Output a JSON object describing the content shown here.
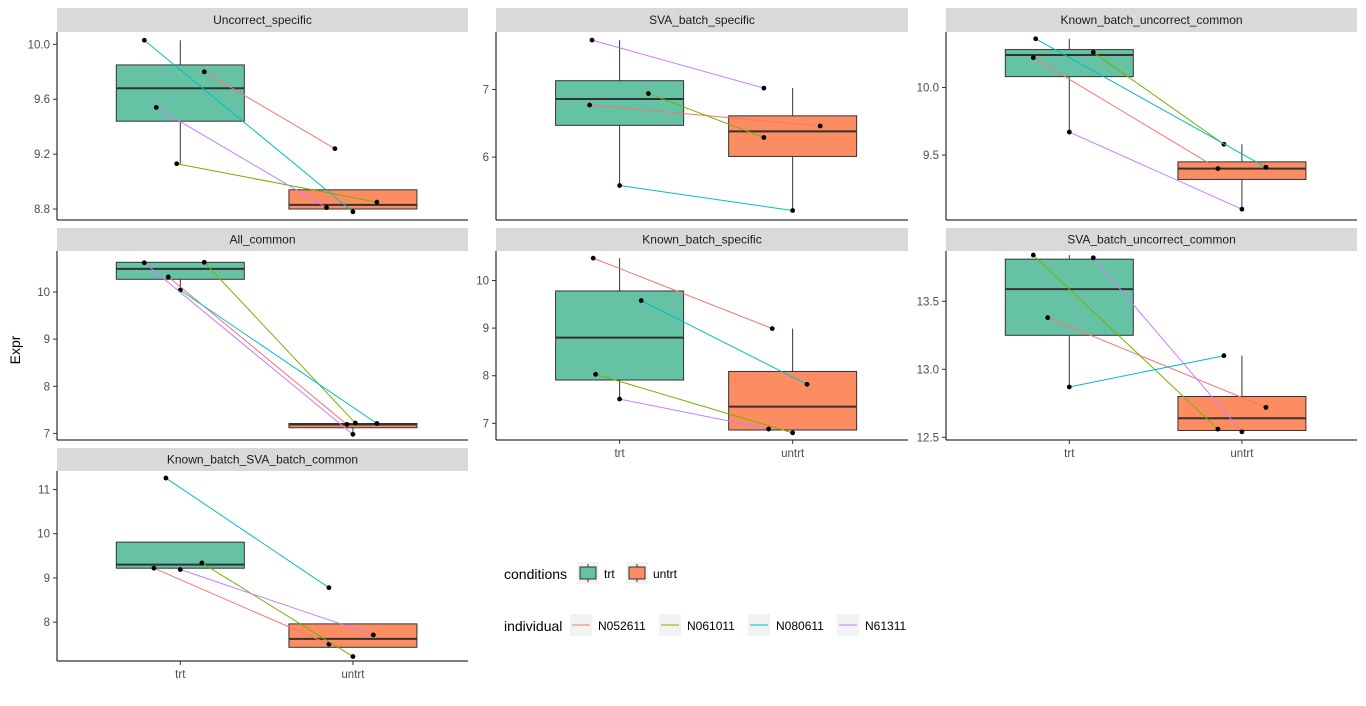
{
  "y_axis_label": "Expr",
  "fill_colors": {
    "trt": "#66c2a5",
    "untrt": "#fc8d62"
  },
  "line_colors": {
    "N052611": "#f8766d",
    "N061011": "#7cae00",
    "N080611": "#00bfc4",
    "N61311": "#c77cff"
  },
  "legend": {
    "conditions": {
      "title": "conditions",
      "items": [
        "trt",
        "untrt"
      ]
    },
    "individual": {
      "title": "individual",
      "items": [
        "N052611",
        "N061011",
        "N080611",
        "N61311"
      ]
    }
  },
  "chart_data": [
    {
      "type": "box+line",
      "title": "Uncorrect_specific",
      "categories": [
        "trt",
        "untrt"
      ],
      "ylim": [
        8.72,
        10.09
      ],
      "yticks": [
        8.8,
        9.2,
        9.6,
        10.0
      ],
      "ytick_labels": [
        "8.8",
        "9.2",
        "9.6",
        "10.0"
      ],
      "show_xaxis": false,
      "boxes": [
        {
          "group": "trt",
          "q1": 9.44,
          "median": 9.68,
          "q3": 9.85,
          "whisker_low": 9.13,
          "whisker_high": 10.03
        },
        {
          "group": "untrt",
          "q1": 8.8,
          "median": 8.83,
          "q3": 8.94,
          "whisker_low": 8.78,
          "whisker_high": 8.94
        }
      ],
      "series": [
        {
          "name": "N052611",
          "trt": 9.8,
          "untrt": 9.24,
          "trt_jitter": 0.2,
          "untrt_jitter": -0.15
        },
        {
          "name": "N061011",
          "trt": 9.13,
          "untrt": 8.85,
          "trt_jitter": -0.03,
          "untrt_jitter": 0.2
        },
        {
          "name": "N080611",
          "trt": 10.03,
          "untrt": 8.78,
          "trt_jitter": -0.3,
          "untrt_jitter": 0
        },
        {
          "name": "N61311",
          "trt": 9.54,
          "untrt": 8.81,
          "trt_jitter": -0.2,
          "untrt_jitter": -0.22
        }
      ]
    },
    {
      "type": "box+line",
      "title": "SVA_batch_specific",
      "categories": [
        "trt",
        "untrt"
      ],
      "ylim": [
        5.07,
        7.85
      ],
      "yticks": [
        6,
        7
      ],
      "ytick_labels": [
        "6",
        "7"
      ],
      "show_xaxis": false,
      "boxes": [
        {
          "group": "trt",
          "q1": 6.47,
          "median": 6.86,
          "q3": 7.13,
          "whisker_low": 5.58,
          "whisker_high": 7.73
        },
        {
          "group": "untrt",
          "q1": 6.01,
          "median": 6.38,
          "q3": 6.61,
          "whisker_low": 5.21,
          "whisker_high": 7.02
        }
      ],
      "series": [
        {
          "name": "N052611",
          "trt": 6.77,
          "untrt": 6.46,
          "trt_jitter": -0.25,
          "untrt_jitter": 0.23
        },
        {
          "name": "N061011",
          "trt": 6.94,
          "untrt": 6.29,
          "trt_jitter": 0.24,
          "untrt_jitter": -0.24
        },
        {
          "name": "N080611",
          "trt": 5.58,
          "untrt": 5.21,
          "trt_jitter": 0,
          "untrt_jitter": 0
        },
        {
          "name": "N61311",
          "trt": 7.73,
          "untrt": 7.02,
          "trt_jitter": -0.23,
          "untrt_jitter": -0.24
        }
      ]
    },
    {
      "type": "box+line",
      "title": "Known_batch_uncorrect_common",
      "categories": [
        "trt",
        "untrt"
      ],
      "ylim": [
        9.02,
        10.41
      ],
      "yticks": [
        9.5,
        10.0
      ],
      "ytick_labels": [
        "9.5",
        "10.0"
      ],
      "show_xaxis": false,
      "boxes": [
        {
          "group": "trt",
          "q1": 10.08,
          "median": 10.24,
          "q3": 10.28,
          "whisker_low": 9.67,
          "whisker_high": 10.36
        },
        {
          "group": "untrt",
          "q1": 9.32,
          "median": 9.4,
          "q3": 9.45,
          "whisker_low": 9.1,
          "whisker_high": 9.58
        }
      ],
      "series": [
        {
          "name": "N052611",
          "trt": 10.22,
          "untrt": 9.4,
          "trt_jitter": -0.3,
          "untrt_jitter": -0.2
        },
        {
          "name": "N061011",
          "trt": 10.26,
          "untrt": 9.58,
          "trt_jitter": 0.2,
          "untrt_jitter": -0.15
        },
        {
          "name": "N080611",
          "trt": 10.36,
          "untrt": 9.41,
          "trt_jitter": -0.28,
          "untrt_jitter": 0.2
        },
        {
          "name": "N61311",
          "trt": 9.67,
          "untrt": 9.1,
          "trt_jitter": 0,
          "untrt_jitter": 0
        }
      ]
    },
    {
      "type": "box+line",
      "title": "All_common",
      "categories": [
        "trt",
        "untrt"
      ],
      "ylim": [
        6.86,
        10.87
      ],
      "yticks": [
        7,
        8,
        9,
        10
      ],
      "ytick_labels": [
        "7",
        "8",
        "9",
        "10"
      ],
      "show_xaxis": false,
      "boxes": [
        {
          "group": "trt",
          "q1": 10.27,
          "median": 10.49,
          "q3": 10.63,
          "whisker_low": 10.04,
          "whisker_high": 10.63
        },
        {
          "group": "untrt",
          "q1": 7.12,
          "median": 7.19,
          "q3": 7.21,
          "whisker_low": 6.98,
          "whisker_high": 7.21
        }
      ],
      "series": [
        {
          "name": "N052611",
          "trt": 10.32,
          "untrt": 7.19,
          "trt_jitter": -0.1,
          "untrt_jitter": -0.05
        },
        {
          "name": "N061011",
          "trt": 10.63,
          "untrt": 7.22,
          "trt_jitter": 0.2,
          "untrt_jitter": 0.02
        },
        {
          "name": "N080611",
          "trt": 10.04,
          "untrt": 7.21,
          "trt_jitter": 0,
          "untrt_jitter": 0.2
        },
        {
          "name": "N61311",
          "trt": 10.62,
          "untrt": 6.98,
          "trt_jitter": -0.3,
          "untrt_jitter": 0
        }
      ]
    },
    {
      "type": "box+line",
      "title": "Known_batch_specific",
      "categories": [
        "trt",
        "untrt"
      ],
      "ylim": [
        6.65,
        10.62
      ],
      "yticks": [
        7,
        8,
        9,
        10
      ],
      "ytick_labels": [
        "7",
        "8",
        "9",
        "10"
      ],
      "show_xaxis": true,
      "boxes": [
        {
          "group": "trt",
          "q1": 7.91,
          "median": 8.8,
          "q3": 9.78,
          "whisker_low": 7.51,
          "whisker_high": 10.47
        },
        {
          "group": "untrt",
          "q1": 6.86,
          "median": 7.35,
          "q3": 8.09,
          "whisker_low": 6.8,
          "whisker_high": 8.99
        }
      ],
      "series": [
        {
          "name": "N052611",
          "trt": 10.47,
          "untrt": 8.99,
          "trt_jitter": -0.22,
          "untrt_jitter": -0.17
        },
        {
          "name": "N061011",
          "trt": 8.03,
          "untrt": 6.8,
          "trt_jitter": -0.2,
          "untrt_jitter": 0
        },
        {
          "name": "N080611",
          "trt": 9.58,
          "untrt": 7.82,
          "trt_jitter": 0.18,
          "untrt_jitter": 0.12
        },
        {
          "name": "N61311",
          "trt": 7.51,
          "untrt": 6.88,
          "trt_jitter": 0,
          "untrt_jitter": -0.2
        }
      ]
    },
    {
      "type": "box+line",
      "title": "SVA_batch_uncorrect_common",
      "categories": [
        "trt",
        "untrt"
      ],
      "ylim": [
        12.48,
        13.87
      ],
      "yticks": [
        12.5,
        13.0,
        13.5
      ],
      "ytick_labels": [
        "12.5",
        "13.0",
        "13.5"
      ],
      "show_xaxis": true,
      "boxes": [
        {
          "group": "trt",
          "q1": 13.25,
          "median": 13.59,
          "q3": 13.81,
          "whisker_low": 12.87,
          "whisker_high": 13.84
        },
        {
          "group": "untrt",
          "q1": 12.55,
          "median": 12.64,
          "q3": 12.8,
          "whisker_low": 12.54,
          "whisker_high": 13.1
        }
      ],
      "series": [
        {
          "name": "N052611",
          "trt": 13.38,
          "untrt": 12.72,
          "trt_jitter": -0.18,
          "untrt_jitter": 0.2
        },
        {
          "name": "N061011",
          "trt": 13.84,
          "untrt": 12.56,
          "trt_jitter": -0.3,
          "untrt_jitter": -0.2
        },
        {
          "name": "N080611",
          "trt": 12.87,
          "untrt": 13.1,
          "trt_jitter": 0,
          "untrt_jitter": -0.15
        },
        {
          "name": "N61311",
          "trt": 13.82,
          "untrt": 12.54,
          "trt_jitter": 0.2,
          "untrt_jitter": 0
        }
      ]
    },
    {
      "type": "box+line",
      "title": "Known_batch_SVA_batch_common",
      "categories": [
        "trt",
        "untrt"
      ],
      "ylim": [
        7.12,
        11.42
      ],
      "yticks": [
        8,
        9,
        10,
        11
      ],
      "ytick_labels": [
        "8",
        "9",
        "10",
        "11"
      ],
      "show_xaxis": true,
      "boxes": [
        {
          "group": "trt",
          "q1": 9.22,
          "median": 9.3,
          "q3": 9.81,
          "whisker_low": 9.22,
          "whisker_high": 9.81
        },
        {
          "group": "untrt",
          "q1": 7.43,
          "median": 7.62,
          "q3": 7.96,
          "whisker_low": 7.43,
          "whisker_high": 7.96
        }
      ],
      "series": [
        {
          "name": "N052611",
          "trt": 9.22,
          "untrt": 7.5,
          "trt_jitter": -0.22,
          "untrt_jitter": -0.2
        },
        {
          "name": "N061011",
          "trt": 9.34,
          "untrt": 7.22,
          "trt_jitter": 0.18,
          "untrt_jitter": 0
        },
        {
          "name": "N080611",
          "trt": 11.26,
          "untrt": 8.78,
          "trt_jitter": -0.12,
          "untrt_jitter": -0.2
        },
        {
          "name": "N61311",
          "trt": 9.19,
          "untrt": 7.71,
          "trt_jitter": 0,
          "untrt_jitter": 0.17
        }
      ]
    }
  ]
}
